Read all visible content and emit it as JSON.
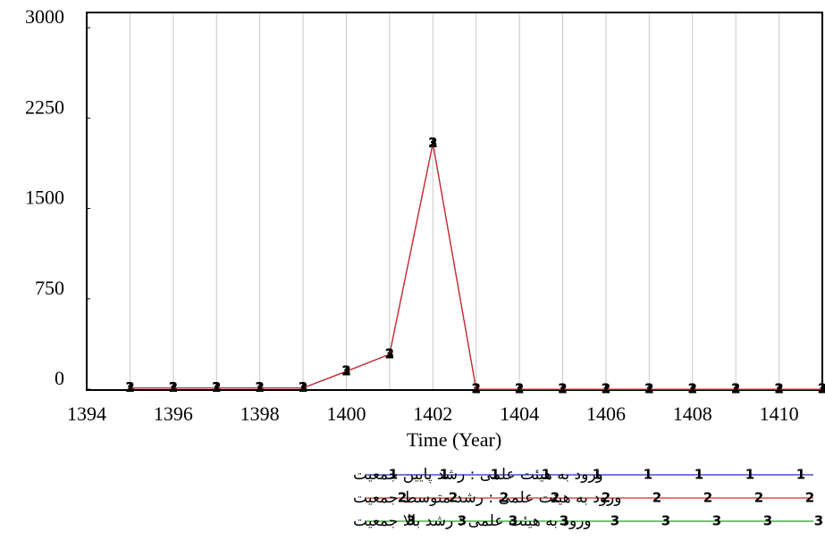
{
  "chart_data": {
    "type": "line",
    "xlabel": "Time (Year)",
    "x": [
      1395,
      1396,
      1397,
      1398,
      1399,
      1400,
      1401,
      1402,
      1403,
      1404,
      1405,
      1406,
      1407,
      1408,
      1409,
      1410,
      1411
    ],
    "xlim": [
      1394,
      1411
    ],
    "xticks": [
      1394,
      1396,
      1398,
      1400,
      1402,
      1404,
      1406,
      1408,
      1410
    ],
    "ylim": [
      -7,
      3126
    ],
    "yticks": [
      0,
      750,
      1500,
      2250,
      3000
    ],
    "grid": true,
    "series": [
      {
        "name": "ورود به هیئت علمی : رشد پایین جمعیت",
        "marker": "1",
        "color": "#2828c8",
        "values": [
          10,
          10,
          10,
          10,
          10,
          148,
          290,
          2040,
          0,
          0,
          0,
          0,
          0,
          0,
          0,
          0,
          0
        ]
      },
      {
        "name": "ورود به هیئت علمی : رشد متوسط جمعیت",
        "marker": "2",
        "color": "#e02828",
        "values": [
          10,
          10,
          10,
          10,
          10,
          148,
          290,
          2040,
          0,
          0,
          0,
          0,
          0,
          0,
          0,
          0,
          0
        ]
      },
      {
        "name": "ورود به هیئت علمی : رشد بالا جمعیت",
        "marker": "3",
        "color": "#20a020",
        "values": [
          10,
          10,
          10,
          10,
          10,
          148,
          290,
          2040,
          0,
          0,
          0,
          0,
          0,
          0,
          0,
          0,
          0
        ]
      }
    ]
  }
}
